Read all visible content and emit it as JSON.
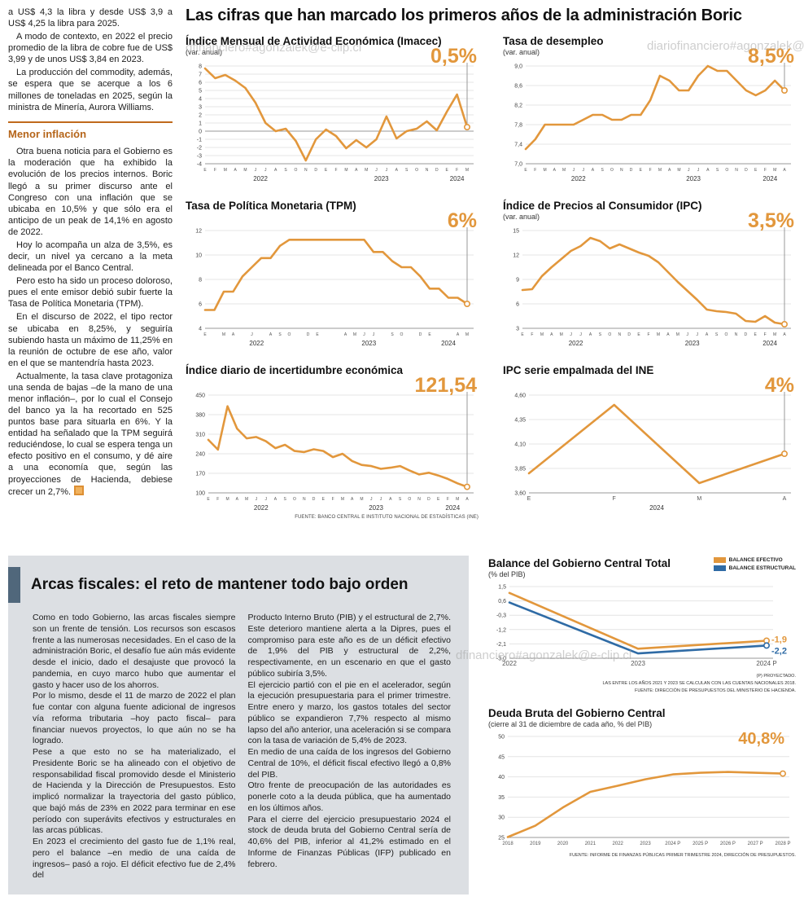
{
  "watermarks": {
    "wm1": "dfinanciero#agonzalek@e-clip.cl",
    "wm2": "diariofinanciero#agonzalek@e-clip.cl",
    "wm3": "dfinanciero#agonzalek@e-clip.cl"
  },
  "left_column": {
    "paragraphs_top": [
      "a US$ 4,3 la libra y desde US$ 3,9 a US$ 4,25 la libra para 2025.",
      "A modo de contexto, en 2022 el precio promedio de la libra de cobre fue de US$ 3,99 y de unos US$ 3,84 en 2023.",
      "La producción del commodity, además, se espera que se acerque a los 6 millones de toneladas en 2025, según la ministra de Minería, Aurora Williams."
    ],
    "subhead": "Menor inflación",
    "paragraphs_bottom": [
      "Otra buena noticia para el Gobierno es la moderación que ha exhibido la evolución de los precios internos. Boric llegó a su primer discurso ante el Congreso con una inflación que se ubicaba en 10,5% y que sólo era el anticipo de un peak de 14,1% en agosto de 2022.",
      "Hoy lo acompaña un alza de 3,5%, es decir, un nivel ya cercano a la meta delineada por el Banco Central.",
      "Pero esto ha sido un proceso doloroso, pues el ente emisor debió subir fuerte la Tasa de Política Monetaria (TPM).",
      "En el discurso de 2022, el tipo rector se ubicaba en 8,25%, y seguiría subiendo hasta un máximo de 11,25% en la reunión de octubre de ese año, valor en el que se mantendría hasta 2023.",
      "Actualmente, la tasa clave protagoniza una senda de bajas –de la mano de una menor inflación–, por lo cual el Consejo del banco ya la ha recortado en 525 puntos base para situarla en 6%. Y la entidad ha señalado que la TPM seguirá reduciéndose, lo cual se espera tenga un efecto positivo en el consumo, y dé aire a una economía que, según las proyecciones de Hacienda, debiese crecer un 2,7%."
    ]
  },
  "main": {
    "title": "Las cifras que han marcado los primeros años de la administración Boric",
    "source": "FUENTE: BANCO CENTRAL E INSTITUTO NACIONAL DE ESTADÍSTICAS (INE)"
  },
  "fiscal": {
    "title": "Arcas fiscales: el reto de mantener todo bajo orden",
    "col1": [
      "Como en todo Gobierno, las arcas fiscales siempre son un frente de tensión. Los recursos son escasos frente a las numerosas necesidades. En el caso de la administración Boric, el desafío fue aún más evidente desde el inicio, dado el desajuste que provocó la pandemia, en cuyo marco hubo que aumentar el gasto y hacer uso de los ahorros.",
      "Por lo mismo, desde el 11 de marzo de 2022 el plan fue contar con alguna fuente adicional de ingresos vía reforma tributaria –hoy pacto fiscal– para financiar nuevos proyectos, lo que aún no se ha logrado.",
      "Pese a que esto no se ha materializado, el Presidente Boric se ha alineado con el objetivo de responsabilidad fiscal promovido desde el Ministerio de Hacienda y la Dirección de Presupuestos. Esto implicó normalizar la trayectoria del gasto público, que bajó más de 23% en 2022 para terminar en ese período con superávits efectivos y estructurales en las arcas públicas.",
      "En 2023 el crecimiento del gasto fue de 1,1% real, pero el balance –en medio de una caída de ingresos– pasó a rojo. El déficit efectivo fue de 2,4% del"
    ],
    "col2": [
      "Producto Interno Bruto (PIB) y el estructural de 2,7%. Este deterioro mantiene alerta a la Dipres, pues el compromiso para este año es de un déficit efectivo de 1,9% del PIB y estructural de 2,2%, respectivamente, en un escenario en que el gasto público subiría 3,5%.",
      "El ejercicio partió con el pie en el acelerador, según la ejecución presupuestaria para el primer trimestre. Entre enero y marzo, los gastos totales del sector público se expandieron 7,7% respecto al mismo lapso del año anterior, una aceleración si se compara con la tasa de variación de 5,4% de 2023.",
      "En medio de una caída de los ingresos del Gobierno Central de 10%, el déficit fiscal efectivo llegó a 0,8% del PIB.",
      "Otro frente de preocupación de las autoridades es ponerle coto a la deuda pública, que ha aumentado en los últimos años.",
      "Para el cierre del ejercicio presupuestario 2024 el stock de deuda bruta del Gobierno Central sería de 40,6% del PIB, inferior al 41,2% estimado en el Informe de Finanzas Públicas (IFP) publicado en febrero."
    ]
  },
  "chart_data": [
    {
      "id": "imacec",
      "type": "line",
      "title": "Índice Mensual de Actividad Económica (Imacec)",
      "subtitle": "(var. anual)",
      "value_label": "0,5%",
      "y_ticks": [
        "8",
        "7",
        "6",
        "5",
        "4",
        "3",
        "2",
        "1",
        "0",
        "-1",
        "-2",
        "-3",
        "-4"
      ],
      "x_labels": [
        "E",
        "F",
        "M",
        "A",
        "M",
        "J",
        "J",
        "A",
        "S",
        "O",
        "N",
        "D",
        "E",
        "F",
        "M",
        "A",
        "M",
        "J",
        "J",
        "A",
        "S",
        "O",
        "N",
        "D",
        "E",
        "F",
        "M"
      ],
      "x_years": [
        {
          "label": "2022",
          "from": 0,
          "to": 11
        },
        {
          "label": "2023",
          "from": 12,
          "to": 23
        },
        {
          "label": "2024",
          "from": 24,
          "to": 26
        }
      ],
      "series": [
        {
          "name": "Imacec",
          "color": "#e2973c",
          "values": [
            7.7,
            6.5,
            6.9,
            6.2,
            5.3,
            3.5,
            1.0,
            0.0,
            0.3,
            -1.2,
            -3.6,
            -1.0,
            0.2,
            -0.6,
            -2.1,
            -1.1,
            -2.0,
            -1.0,
            1.8,
            -0.9,
            0.0,
            0.3,
            1.2,
            0.1,
            2.4,
            4.5,
            0.5
          ]
        }
      ],
      "guide": true,
      "margin_left": 24
    },
    {
      "id": "desempleo",
      "type": "line",
      "title": "Tasa de desempleo",
      "subtitle": "(var. anual)",
      "value_label": "8,5%",
      "y_ticks": [
        "9,0",
        "8,6",
        "8,2",
        "7,8",
        "7,4",
        "7,0"
      ],
      "x_labels": [
        "E",
        "F",
        "M",
        "A",
        "M",
        "J",
        "J",
        "A",
        "S",
        "O",
        "N",
        "D",
        "E",
        "F",
        "M",
        "A",
        "M",
        "J",
        "J",
        "A",
        "S",
        "O",
        "N",
        "D",
        "E",
        "F",
        "M",
        "A"
      ],
      "x_years": [
        {
          "label": "2022",
          "from": 0,
          "to": 11
        },
        {
          "label": "2023",
          "from": 12,
          "to": 23
        },
        {
          "label": "2024",
          "from": 24,
          "to": 27
        }
      ],
      "series": [
        {
          "name": "Tasa de desempleo",
          "color": "#e2973c",
          "values": [
            7.3,
            7.5,
            7.8,
            7.8,
            7.8,
            7.8,
            7.9,
            8.0,
            8.0,
            7.9,
            7.9,
            8.0,
            8.0,
            8.3,
            8.8,
            8.7,
            8.5,
            8.5,
            8.8,
            9.0,
            8.9,
            8.9,
            8.7,
            8.5,
            8.4,
            8.5,
            8.7,
            8.5
          ]
        }
      ],
      "guide": true,
      "margin_left": 28
    },
    {
      "id": "tpm",
      "type": "line",
      "title": "Tasa de Política Monetaria (TPM)",
      "subtitle": "",
      "value_label": "6%",
      "y_ticks": [
        "12",
        "10",
        "8",
        "6",
        "4"
      ],
      "x_labels": [
        "E",
        "",
        "M",
        "A",
        "",
        "J",
        "",
        "A",
        "S",
        "O",
        "",
        "D",
        "E",
        "",
        "",
        "A",
        "M",
        "J",
        "J",
        "",
        "S",
        "O",
        "",
        "D",
        "E",
        "",
        "",
        "A",
        "M"
      ],
      "x_years": [
        {
          "label": "2022",
          "from": 0,
          "to": 11
        },
        {
          "label": "2023",
          "from": 12,
          "to": 23
        },
        {
          "label": "2024",
          "from": 24,
          "to": 28
        }
      ],
      "series": [
        {
          "name": "TPM",
          "color": "#e2973c",
          "values": [
            5.5,
            5.5,
            7.0,
            7.0,
            8.25,
            9.0,
            9.75,
            9.75,
            10.75,
            11.25,
            11.25,
            11.25,
            11.25,
            11.25,
            11.25,
            11.25,
            11.25,
            11.25,
            10.25,
            10.25,
            9.5,
            9.0,
            9.0,
            8.25,
            7.25,
            7.25,
            6.5,
            6.5,
            6.0
          ]
        }
      ],
      "guide": true,
      "margin_left": 24
    },
    {
      "id": "ipc",
      "type": "line",
      "title": "Índice de Precios al Consumidor (IPC)",
      "subtitle": "(var. anual)",
      "value_label": "3,5%",
      "y_ticks": [
        "15",
        "12",
        "9",
        "6",
        "3"
      ],
      "x_labels": [
        "E",
        "F",
        "M",
        "A",
        "M",
        "J",
        "J",
        "A",
        "S",
        "O",
        "N",
        "D",
        "E",
        "F",
        "M",
        "A",
        "M",
        "J",
        "J",
        "A",
        "S",
        "O",
        "N",
        "D",
        "E",
        "F",
        "M",
        "A"
      ],
      "x_years": [
        {
          "label": "2022",
          "from": 0,
          "to": 11
        },
        {
          "label": "2023",
          "from": 12,
          "to": 23
        },
        {
          "label": "2024",
          "from": 24,
          "to": 27
        }
      ],
      "series": [
        {
          "name": "IPC",
          "color": "#e2973c",
          "values": [
            7.7,
            7.8,
            9.4,
            10.5,
            11.5,
            12.5,
            13.1,
            14.1,
            13.7,
            12.8,
            13.3,
            12.8,
            12.3,
            11.9,
            11.1,
            9.9,
            8.7,
            7.6,
            6.5,
            5.3,
            5.1,
            5.0,
            4.8,
            3.9,
            3.8,
            4.5,
            3.7,
            3.5
          ]
        }
      ],
      "guide": true,
      "margin_left": 24
    },
    {
      "id": "incertidumbre",
      "type": "line",
      "title": "Índice diario de incertidumbre económica",
      "subtitle": "",
      "value_label": "121,54",
      "y_ticks": [
        "450",
        "380",
        "310",
        "240",
        "170",
        "100"
      ],
      "x_labels": [
        "E",
        "F",
        "M",
        "A",
        "M",
        "J",
        "J",
        "A",
        "S",
        "O",
        "N",
        "D",
        "E",
        "F",
        "M",
        "A",
        "M",
        "J",
        "J",
        "A",
        "S",
        "O",
        "N",
        "D",
        "E",
        "F",
        "M",
        "A"
      ],
      "x_years": [
        {
          "label": "2022",
          "from": 0,
          "to": 11
        },
        {
          "label": "2023",
          "from": 12,
          "to": 23
        },
        {
          "label": "2024",
          "from": 24,
          "to": 27
        }
      ],
      "series": [
        {
          "name": "Incertidumbre económica",
          "color": "#e2973c",
          "values": [
            290,
            255,
            410,
            330,
            295,
            300,
            285,
            260,
            272,
            250,
            246,
            256,
            250,
            228,
            240,
            214,
            200,
            196,
            186,
            190,
            196,
            180,
            166,
            172,
            162,
            150,
            134,
            121.54
          ]
        }
      ],
      "guide": true,
      "margin_left": 28
    },
    {
      "id": "empalmada",
      "type": "line",
      "title": "IPC serie empalmada del INE",
      "subtitle": "",
      "value_label": "4%",
      "y_ticks": [
        "4,60",
        "4,35",
        "4,10",
        "3,85",
        "3,60"
      ],
      "x_labels": [
        "E",
        "F",
        "M",
        "A"
      ],
      "x_font": 7,
      "x_years": [
        {
          "label": "2024",
          "from": 0,
          "to": 3
        }
      ],
      "series": [
        {
          "name": "IPC serie empalmada",
          "color": "#e2973c",
          "values": [
            3.8,
            4.5,
            3.7,
            4.0
          ]
        }
      ],
      "guide": true,
      "margin_left": 32
    },
    {
      "id": "balance",
      "type": "line",
      "title": "Balance del Gobierno Central Total",
      "subtitle": "(% del PIB)",
      "legend": [
        {
          "label": "BALANCE EFECTIVO",
          "color": "#e2973c"
        },
        {
          "label": "BALANCE ESTRUCTURAL",
          "color": "#2f6ba5"
        }
      ],
      "y_ticks": [
        "1,5",
        "0,6",
        "-0,3",
        "-1,2",
        "-2,1",
        "-3,0"
      ],
      "x_labels": [
        "2022",
        "2023",
        "2024 P"
      ],
      "x_font": 8,
      "series": [
        {
          "name": "Balance efectivo",
          "color": "#e2973c",
          "values": [
            1.1,
            -2.4,
            -1.9
          ],
          "end_label": "-1,9",
          "label_dy": 2
        },
        {
          "name": "Balance estructural",
          "color": "#2f6ba5",
          "values": [
            0.5,
            -2.7,
            -2.2
          ],
          "end_label": "-2,2",
          "label_dy": 10
        }
      ],
      "footnotes": [
        "(P) PROYECTADO.",
        "LAS ENTRE LOS AÑOS 2021 Y 2023 SE CALCULAN CON LAS CUENTAS NACIONALES 2018.",
        "FUENTE: DIRECCIÓN DE PRESUPUESTOS DEL MINISTERIO DE HACIENDA."
      ],
      "margin_left": 26,
      "margin_right": 36
    },
    {
      "id": "deuda",
      "type": "line",
      "title": "Deuda Bruta del Gobierno Central",
      "subtitle": "(cierre al 31 de diciembre de cada año, % del PIB)",
      "value_label": "40,8%",
      "y_ticks": [
        "50",
        "45",
        "40",
        "35",
        "30",
        "25"
      ],
      "x_labels": [
        "2018",
        "2019",
        "2020",
        "2021",
        "2022",
        "2023",
        "2024 P",
        "2025 P",
        "2026 P",
        "2027 P",
        "2028 P"
      ],
      "x_font": 6,
      "series": [
        {
          "name": "Deuda bruta",
          "color": "#e2973c",
          "values": [
            25.1,
            27.9,
            32.4,
            36.3,
            37.8,
            39.4,
            40.6,
            41.0,
            41.2,
            41.0,
            40.8
          ]
        }
      ],
      "footnotes": [
        "FUENTE: INFORME DE FINANZAS PÚBLICAS PRIMER TRIMESTRE 2024, DIRECCIÓN DE PRESUPUESTOS."
      ],
      "margin_left": 24,
      "margin_right": 16
    }
  ]
}
